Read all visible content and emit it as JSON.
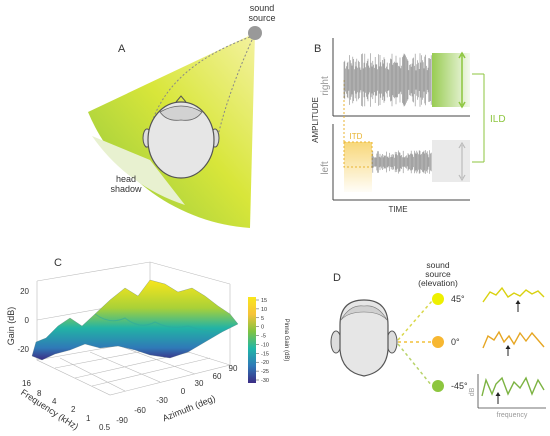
{
  "panels": {
    "a": {
      "letter": "A",
      "source_line1": "sound",
      "source_line2": "source",
      "shadow_line1": "head",
      "shadow_line2": "shadow"
    },
    "b": {
      "letter": "B",
      "ylabel": "AMPLITUDE",
      "xlabel": "TIME",
      "right_label": "right",
      "left_label": "left",
      "itd_label": "ITD",
      "ild_label": "ILD"
    },
    "c": {
      "letter": "C",
      "zlabel": "Gain (dB)",
      "ylabel": "Frequency (kHz)",
      "xlabel": "Azimuth (deg)",
      "colorbar_label": "Pinna Gain (dB)",
      "z_ticks": [
        "20",
        "0",
        "-20"
      ],
      "freq_ticks": [
        "16",
        "8",
        "4",
        "2",
        "1",
        "0.5"
      ],
      "az_ticks": [
        "-90",
        "-60",
        "-30",
        "0",
        "30",
        "60",
        "90"
      ],
      "cbar_ticks": [
        "15",
        "10",
        "5",
        "0",
        "-5",
        "-10",
        "-15",
        "-20",
        "-25",
        "-30"
      ]
    },
    "d": {
      "letter": "D",
      "title_line1": "sound",
      "title_line2": "source",
      "title_line3": "(elevation)",
      "elevations": [
        "45°",
        "0°",
        "-45°"
      ],
      "spec_ylabel": "dB",
      "spec_xlabel": "frequency"
    }
  },
  "colors": {
    "yellow": "#eef000",
    "green": "#8dc63f",
    "orange": "#f7b731",
    "grey_wave": "#8c8c8c"
  }
}
